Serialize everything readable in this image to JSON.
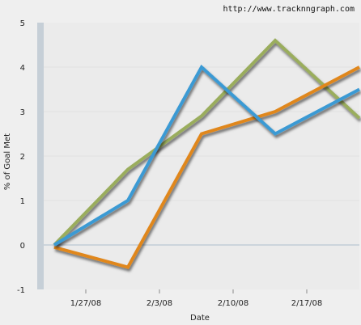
{
  "watermark": "http://www.tracknngraph.com",
  "chart_data": {
    "type": "line",
    "xlabel": "Date",
    "ylabel": "% of Goal Met",
    "ylim": [
      -1,
      5
    ],
    "yticks": [
      "-1",
      "0",
      "1",
      "2",
      "3",
      "4",
      "5"
    ],
    "xlim": [
      "2008-01-23",
      "2008-02-22"
    ],
    "xticks": [
      {
        "date": "2008-01-27",
        "label": "1/27/08"
      },
      {
        "date": "2008-02-03",
        "label": "2/3/08"
      },
      {
        "date": "2008-02-10",
        "label": "2/10/08"
      },
      {
        "date": "2008-02-17",
        "label": "2/17/08"
      }
    ],
    "grid": "horizontal",
    "series": [
      {
        "color": "#9aad5d",
        "points": [
          {
            "x": "2008-01-24",
            "y": 0
          },
          {
            "x": "2008-01-31",
            "y": 1.7
          },
          {
            "x": "2008-02-07",
            "y": 2.9
          },
          {
            "x": "2008-02-14",
            "y": 4.6
          },
          {
            "x": "2008-02-22",
            "y": 2.85
          }
        ]
      },
      {
        "color": "#e0871f",
        "points": [
          {
            "x": "2008-01-24",
            "y": -0.05
          },
          {
            "x": "2008-01-31",
            "y": -0.5
          },
          {
            "x": "2008-02-07",
            "y": 2.5
          },
          {
            "x": "2008-02-14",
            "y": 3.0
          },
          {
            "x": "2008-02-22",
            "y": 4.0
          }
        ]
      },
      {
        "color": "#3a9ad4",
        "points": [
          {
            "x": "2008-01-24",
            "y": 0
          },
          {
            "x": "2008-01-31",
            "y": 1.0
          },
          {
            "x": "2008-02-07",
            "y": 4.0
          },
          {
            "x": "2008-02-14",
            "y": 2.5
          },
          {
            "x": "2008-02-22",
            "y": 3.5
          }
        ]
      }
    ]
  }
}
